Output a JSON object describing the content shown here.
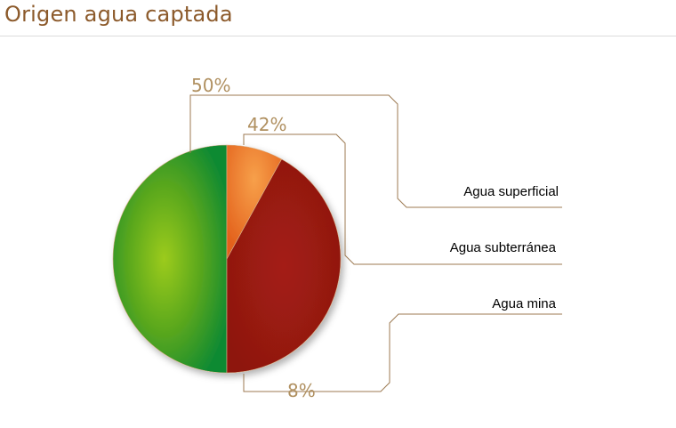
{
  "page": {
    "title": "Origen agua captada"
  },
  "chart_data": {
    "type": "pie",
    "title": "Origen agua captada",
    "categories": [
      "Agua superficial",
      "Agua subterránea",
      "Agua mina"
    ],
    "values": [
      50,
      42,
      8
    ],
    "labels": [
      "50%",
      "42%",
      "8%"
    ],
    "colors": [
      "#5aa51e",
      "#9b1a12",
      "#ee7a2a"
    ],
    "legend": "right"
  }
}
